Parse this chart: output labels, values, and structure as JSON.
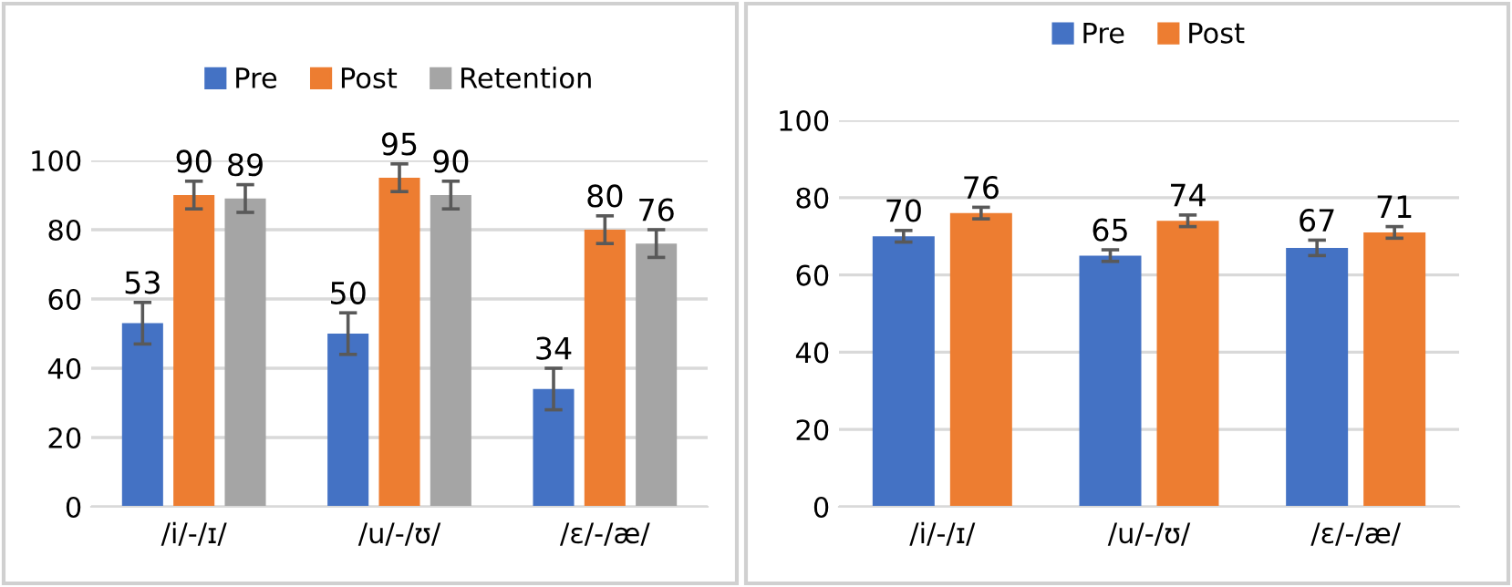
{
  "chart_data": [
    {
      "type": "bar",
      "categories": [
        "/i/-/ɪ/",
        "/u/-/ʊ/",
        "/ɛ/-/æ/"
      ],
      "ylim": [
        0,
        100
      ],
      "yticks": [
        0,
        20,
        40,
        60,
        80,
        100
      ],
      "grid": "y",
      "legend": "top",
      "data_labels": true,
      "series": [
        {
          "name": "Pre",
          "color": "#4472c4",
          "values": [
            53,
            50,
            34
          ],
          "errors": [
            6,
            6,
            6
          ]
        },
        {
          "name": "Post",
          "color": "#ed7d31",
          "values": [
            90,
            95,
            80
          ],
          "errors": [
            4,
            4,
            4
          ]
        },
        {
          "name": "Retention",
          "color": "#a5a5a5",
          "values": [
            89,
            90,
            76
          ],
          "errors": [
            4,
            4,
            4
          ]
        }
      ]
    },
    {
      "type": "bar",
      "categories": [
        "/i/-/ɪ/",
        "/u/-/ʊ/",
        "/ɛ/-/æ/"
      ],
      "ylim": [
        0,
        100
      ],
      "yticks": [
        0,
        20,
        40,
        60,
        80,
        100
      ],
      "grid": "y",
      "legend": "top",
      "data_labels": true,
      "series": [
        {
          "name": "Pre",
          "color": "#4472c4",
          "values": [
            70,
            65,
            67
          ],
          "errors": [
            1.5,
            1.5,
            2
          ]
        },
        {
          "name": "Post",
          "color": "#ed7d31",
          "values": [
            76,
            74,
            71
          ],
          "errors": [
            1.5,
            1.5,
            1.5
          ]
        }
      ]
    }
  ]
}
